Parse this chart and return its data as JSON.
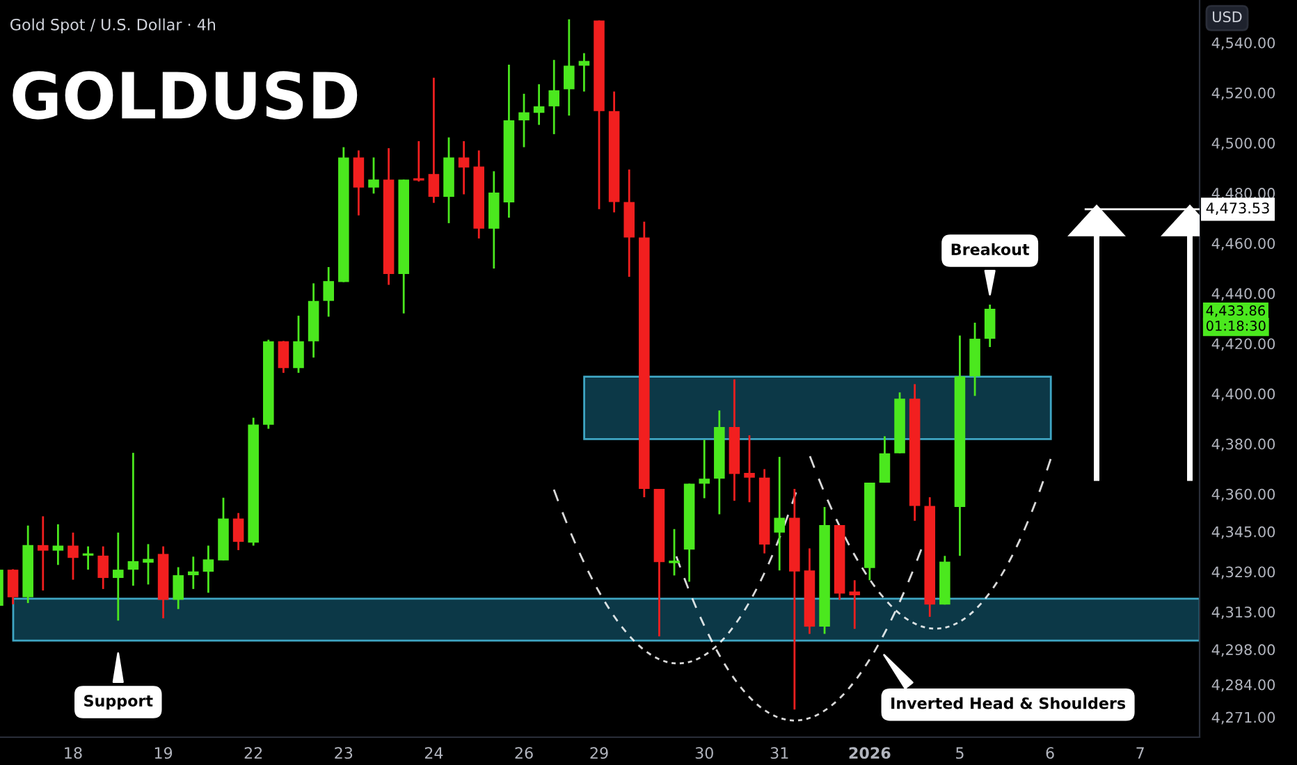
{
  "chart_data": {
    "type": "candlestick",
    "title": "Gold Spot / U.S. Dollar · 4h",
    "subtitle": "GOLDUSD",
    "ylabel": "USD",
    "annotations": [
      "Breakout",
      "Support",
      "Inverted Head & Shoulders",
      "4,433.86",
      "01:18:30"
    ],
    "categories": [
      null,
      null,
      null,
      null,
      null,
      "18",
      null,
      null,
      null,
      null,
      null,
      "19",
      null,
      null,
      null,
      null,
      null,
      "22",
      null,
      null,
      null,
      null,
      null,
      "23",
      null,
      null,
      null,
      null,
      null,
      "24",
      null,
      null,
      null,
      null,
      null,
      "26",
      null,
      null,
      null,
      null,
      "29",
      null,
      null,
      null,
      null,
      null,
      null,
      "30",
      null,
      null,
      null,
      null,
      "31",
      null,
      null,
      null,
      null,
      null,
      "2026",
      null,
      null,
      null,
      null,
      null,
      "5",
      null,
      null,
      null,
      null,
      null,
      "6",
      null,
      null,
      null,
      null,
      null,
      "7",
      null,
      null,
      null
    ],
    "ohlc": [
      [
        4315.4,
        4330,
        4315,
        4329.8
      ],
      [
        4329.8,
        4330,
        4316,
        4318.8
      ],
      [
        4318.8,
        4347.4,
        4316.5,
        4339.6
      ],
      [
        4339.6,
        4351.1,
        4321.5,
        4337.4
      ],
      [
        4337.4,
        4347.9,
        4331.7,
        4339.4
      ],
      [
        4339.4,
        4344.6,
        4325.8,
        4334.5
      ],
      [
        4335.4,
        4339.1,
        4329.8,
        4336.3
      ],
      [
        4335.4,
        4339.1,
        4322.1,
        4326.5
      ],
      [
        4326.5,
        4344.6,
        4309.5,
        4329.8
      ],
      [
        4329.8,
        4376.4,
        4323.4,
        4333.2
      ],
      [
        4332.6,
        4340,
        4323.9,
        4334.1
      ],
      [
        4336.1,
        4339.1,
        4310.4,
        4317.8
      ],
      [
        4317.8,
        4330.8,
        4314.1,
        4327.6
      ],
      [
        4327.6,
        4335,
        4322.1,
        4329.1
      ],
      [
        4329,
        4339.4,
        4320.6,
        4333.9
      ],
      [
        4333.5,
        4358.5,
        4333.5,
        4350.2
      ],
      [
        4350.2,
        4352.4,
        4337.6,
        4340.9
      ],
      [
        4340.6,
        4390.4,
        4339.4,
        4387.7
      ],
      [
        4387.6,
        4421.5,
        4386,
        4420.9
      ],
      [
        4420.9,
        4421,
        4408.3,
        4410.2
      ],
      [
        4410.2,
        4431.1,
        4408.3,
        4420.9
      ],
      [
        4420.9,
        4444,
        4414.4,
        4437
      ],
      [
        4437,
        4450.5,
        4430.7,
        4444.9
      ],
      [
        4444.5,
        4498.3,
        4444.5,
        4494.2
      ],
      [
        4494.2,
        4497,
        4471.1,
        4482.2
      ],
      [
        4482.2,
        4494.2,
        4479.8,
        4485.4
      ],
      [
        4485.4,
        4497.9,
        4443.4,
        4447.7
      ],
      [
        4447.7,
        4485.4,
        4432,
        4485.4
      ],
      [
        4485.9,
        4500.7,
        4484.6,
        4485
      ],
      [
        4487.6,
        4526,
        4476.1,
        4478.5
      ],
      [
        4478.5,
        4502.2,
        4468,
        4494.2
      ],
      [
        4494.2,
        4500.7,
        4479.5,
        4490.2
      ],
      [
        4490.6,
        4497,
        4461.9,
        4465.8
      ],
      [
        4465.8,
        4488.7,
        4449.9,
        4480.2
      ],
      [
        4476.3,
        4531.2,
        4470.2,
        4509
      ],
      [
        4509,
        4519.6,
        4498.3,
        4512.2
      ],
      [
        4512,
        4523.4,
        4507.2,
        4514.6
      ],
      [
        4514.6,
        4533.1,
        4503.5,
        4521
      ],
      [
        4521.4,
        4549.3,
        4510.9,
        4530.8
      ],
      [
        4530.8,
        4535.8,
        4520.5,
        4532.7
      ],
      [
        4548.8,
        4548.8,
        4473.6,
        4512.7
      ],
      [
        4512.7,
        4520.5,
        4472.3,
        4476.4
      ],
      [
        4476.4,
        4489.4,
        4446.6,
        4462.3
      ],
      [
        4462.3,
        4468.6,
        4358.7,
        4362
      ],
      [
        4362,
        4362,
        4303.2,
        4332.8
      ],
      [
        4332.4,
        4346,
        4327.5,
        4333.4
      ],
      [
        4337.8,
        4364.1,
        4325,
        4364.1
      ],
      [
        4364.1,
        4381.6,
        4358.3,
        4366.1
      ],
      [
        4366.1,
        4393.3,
        4351.9,
        4386.7
      ],
      [
        4386.7,
        4405.7,
        4357.3,
        4368
      ],
      [
        4368.4,
        4383.4,
        4356.7,
        4366.5
      ],
      [
        4366.5,
        4369.9,
        4336.3,
        4339.8
      ],
      [
        4344.6,
        4374.8,
        4329.5,
        4350.5
      ],
      [
        4350.5,
        4362,
        4274,
        4329.1
      ],
      [
        4329.5,
        4338.3,
        4304.2,
        4307.1
      ],
      [
        4307.1,
        4354.8,
        4304.2,
        4347.6
      ],
      [
        4347.6,
        4347.6,
        4317.8,
        4320.3
      ],
      [
        4321.1,
        4325.6,
        4306.2,
        4319.6
      ],
      [
        4330.5,
        4364.5,
        4325.6,
        4364.5
      ],
      [
        4364.5,
        4383,
        4364.5,
        4376.2
      ],
      [
        4376.2,
        4400.5,
        4376.2,
        4398
      ],
      [
        4398,
        4403.8,
        4349.3,
        4355.2
      ],
      [
        4355.2,
        4358.7,
        4311,
        4315.9
      ],
      [
        4315.9,
        4335.3,
        4315.9,
        4333
      ],
      [
        4354.8,
        4423.2,
        4335.3,
        4406.9
      ],
      [
        4406.9,
        4428.3,
        4399.1,
        4421.9
      ],
      [
        4421.9,
        4435.5,
        4418.6,
        4433.86
      ],
      null,
      null,
      null,
      null,
      null,
      null,
      null,
      null,
      null,
      null,
      null,
      null,
      null
    ],
    "ylim": [
      4263,
      4557
    ],
    "yticks": [
      {
        "value": 4540,
        "label": "4,540.00"
      },
      {
        "value": 4520,
        "label": "4,520.00"
      },
      {
        "value": 4500,
        "label": "4,500.00"
      },
      {
        "value": 4480,
        "label": "4,480.00"
      },
      {
        "value": 4460,
        "label": "4,460.00"
      },
      {
        "value": 4440,
        "label": "4,440.00"
      },
      {
        "value": 4420,
        "label": "4,420.00"
      },
      {
        "value": 4400,
        "label": "4,400.00"
      },
      {
        "value": 4380,
        "label": "4,380.00"
      },
      {
        "value": 4360,
        "label": "4,360.00"
      },
      {
        "value": 4345,
        "label": "4,345.00"
      },
      {
        "value": 4329,
        "label": "4,329.00"
      },
      {
        "value": 4313,
        "label": "4,313.00"
      },
      {
        "value": 4298,
        "label": "4,298.00"
      },
      {
        "value": 4284,
        "label": "4,284.00"
      },
      {
        "value": 4271,
        "label": "4,271.00"
      }
    ],
    "ref_lines": [
      {
        "axis": "y",
        "value": 4473.53,
        "label": "4,473.53",
        "color": "#ffffff"
      }
    ],
    "bands": [
      {
        "axis": "y",
        "from": 4301.5,
        "to": 4318.2,
        "color": "#0c3847"
      },
      {
        "axis": "y",
        "from": 4381.9,
        "to": 4406.8,
        "color": "#0c3847"
      }
    ]
  }
}
